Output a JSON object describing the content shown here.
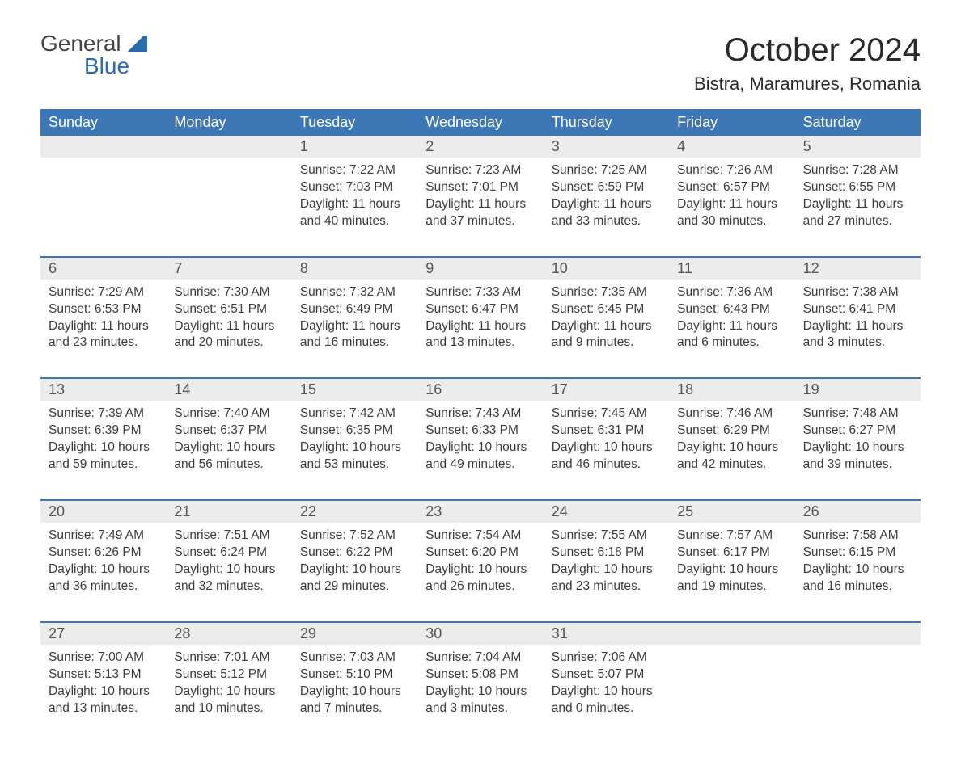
{
  "brand": {
    "text1": "General",
    "text2": "Blue"
  },
  "title": "October 2024",
  "location": "Bistra, Maramures, Romania",
  "colors": {
    "header_bg": "#3d77b6",
    "daynum_bg": "#ececec",
    "text": "#3c3c3c",
    "brand_blue": "#2a6bb0"
  },
  "weekdays": [
    "Sunday",
    "Monday",
    "Tuesday",
    "Wednesday",
    "Thursday",
    "Friday",
    "Saturday"
  ],
  "labels": {
    "sunrise": "Sunrise:",
    "sunset": "Sunset:",
    "daylight": "Daylight:"
  },
  "weeks": [
    [
      null,
      null,
      {
        "n": "1",
        "sr": "7:22 AM",
        "ss": "7:03 PM",
        "d1": "11 hours",
        "d2": "and 40 minutes."
      },
      {
        "n": "2",
        "sr": "7:23 AM",
        "ss": "7:01 PM",
        "d1": "11 hours",
        "d2": "and 37 minutes."
      },
      {
        "n": "3",
        "sr": "7:25 AM",
        "ss": "6:59 PM",
        "d1": "11 hours",
        "d2": "and 33 minutes."
      },
      {
        "n": "4",
        "sr": "7:26 AM",
        "ss": "6:57 PM",
        "d1": "11 hours",
        "d2": "and 30 minutes."
      },
      {
        "n": "5",
        "sr": "7:28 AM",
        "ss": "6:55 PM",
        "d1": "11 hours",
        "d2": "and 27 minutes."
      }
    ],
    [
      {
        "n": "6",
        "sr": "7:29 AM",
        "ss": "6:53 PM",
        "d1": "11 hours",
        "d2": "and 23 minutes."
      },
      {
        "n": "7",
        "sr": "7:30 AM",
        "ss": "6:51 PM",
        "d1": "11 hours",
        "d2": "and 20 minutes."
      },
      {
        "n": "8",
        "sr": "7:32 AM",
        "ss": "6:49 PM",
        "d1": "11 hours",
        "d2": "and 16 minutes."
      },
      {
        "n": "9",
        "sr": "7:33 AM",
        "ss": "6:47 PM",
        "d1": "11 hours",
        "d2": "and 13 minutes."
      },
      {
        "n": "10",
        "sr": "7:35 AM",
        "ss": "6:45 PM",
        "d1": "11 hours",
        "d2": "and 9 minutes."
      },
      {
        "n": "11",
        "sr": "7:36 AM",
        "ss": "6:43 PM",
        "d1": "11 hours",
        "d2": "and 6 minutes."
      },
      {
        "n": "12",
        "sr": "7:38 AM",
        "ss": "6:41 PM",
        "d1": "11 hours",
        "d2": "and 3 minutes."
      }
    ],
    [
      {
        "n": "13",
        "sr": "7:39 AM",
        "ss": "6:39 PM",
        "d1": "10 hours",
        "d2": "and 59 minutes."
      },
      {
        "n": "14",
        "sr": "7:40 AM",
        "ss": "6:37 PM",
        "d1": "10 hours",
        "d2": "and 56 minutes."
      },
      {
        "n": "15",
        "sr": "7:42 AM",
        "ss": "6:35 PM",
        "d1": "10 hours",
        "d2": "and 53 minutes."
      },
      {
        "n": "16",
        "sr": "7:43 AM",
        "ss": "6:33 PM",
        "d1": "10 hours",
        "d2": "and 49 minutes."
      },
      {
        "n": "17",
        "sr": "7:45 AM",
        "ss": "6:31 PM",
        "d1": "10 hours",
        "d2": "and 46 minutes."
      },
      {
        "n": "18",
        "sr": "7:46 AM",
        "ss": "6:29 PM",
        "d1": "10 hours",
        "d2": "and 42 minutes."
      },
      {
        "n": "19",
        "sr": "7:48 AM",
        "ss": "6:27 PM",
        "d1": "10 hours",
        "d2": "and 39 minutes."
      }
    ],
    [
      {
        "n": "20",
        "sr": "7:49 AM",
        "ss": "6:26 PM",
        "d1": "10 hours",
        "d2": "and 36 minutes."
      },
      {
        "n": "21",
        "sr": "7:51 AM",
        "ss": "6:24 PM",
        "d1": "10 hours",
        "d2": "and 32 minutes."
      },
      {
        "n": "22",
        "sr": "7:52 AM",
        "ss": "6:22 PM",
        "d1": "10 hours",
        "d2": "and 29 minutes."
      },
      {
        "n": "23",
        "sr": "7:54 AM",
        "ss": "6:20 PM",
        "d1": "10 hours",
        "d2": "and 26 minutes."
      },
      {
        "n": "24",
        "sr": "7:55 AM",
        "ss": "6:18 PM",
        "d1": "10 hours",
        "d2": "and 23 minutes."
      },
      {
        "n": "25",
        "sr": "7:57 AM",
        "ss": "6:17 PM",
        "d1": "10 hours",
        "d2": "and 19 minutes."
      },
      {
        "n": "26",
        "sr": "7:58 AM",
        "ss": "6:15 PM",
        "d1": "10 hours",
        "d2": "and 16 minutes."
      }
    ],
    [
      {
        "n": "27",
        "sr": "7:00 AM",
        "ss": "5:13 PM",
        "d1": "10 hours",
        "d2": "and 13 minutes."
      },
      {
        "n": "28",
        "sr": "7:01 AM",
        "ss": "5:12 PM",
        "d1": "10 hours",
        "d2": "and 10 minutes."
      },
      {
        "n": "29",
        "sr": "7:03 AM",
        "ss": "5:10 PM",
        "d1": "10 hours",
        "d2": "and 7 minutes."
      },
      {
        "n": "30",
        "sr": "7:04 AM",
        "ss": "5:08 PM",
        "d1": "10 hours",
        "d2": "and 3 minutes."
      },
      {
        "n": "31",
        "sr": "7:06 AM",
        "ss": "5:07 PM",
        "d1": "10 hours",
        "d2": "and 0 minutes."
      },
      null,
      null
    ]
  ]
}
